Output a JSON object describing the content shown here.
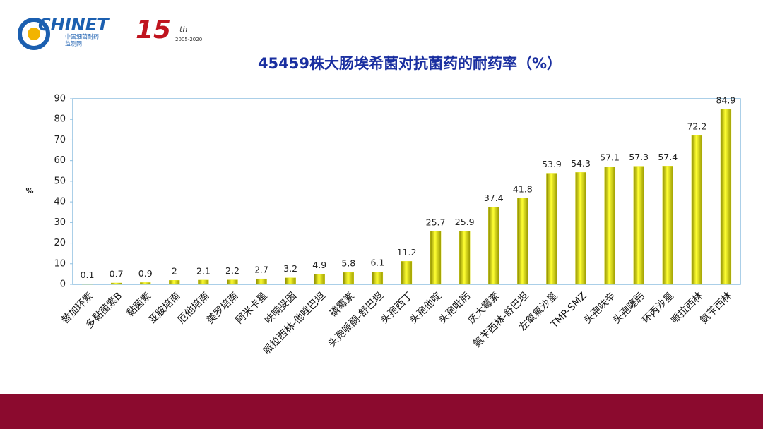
{
  "header": {
    "logo": "CHINET",
    "logo_line1": "中国细菌耐药",
    "logo_line2": "监测网",
    "anniversary": "15",
    "anniversary_suffix": "th",
    "anniversary_years": "2005-2020"
  },
  "chart_data": {
    "type": "bar",
    "title": "45459株大肠埃希菌对抗菌药的耐药率（%）",
    "y_label": "%",
    "categories": [
      "替加环素",
      "多黏菌素B",
      "黏菌素",
      "亚胺培南",
      "厄他培南",
      "美罗培南",
      "阿米卡星",
      "呋喃妥因",
      "哌拉西林-他唑巴坦",
      "磷霉素",
      "头孢哌酮-舒巴坦",
      "头孢西丁",
      "头孢他啶",
      "头孢吡肟",
      "庆大霉素",
      "氨苄西林-舒巴坦",
      "左氧氟沙星",
      "TMP-SMZ",
      "头孢呋辛",
      "头孢噻肟",
      "环丙沙星",
      "哌拉西林",
      "氨苄西林"
    ],
    "values": [
      0.1,
      0.7,
      0.9,
      2,
      2.1,
      2.2,
      2.7,
      3.2,
      4.9,
      5.8,
      6.1,
      11.2,
      25.7,
      25.9,
      37.4,
      41.8,
      53.9,
      54.3,
      57.1,
      57.3,
      57.4,
      72.2,
      84.9
    ],
    "color": "#e6e600",
    "ylim": [
      0,
      90
    ],
    "yticks": [
      0,
      10,
      20,
      30,
      40,
      50,
      60,
      70,
      80,
      90
    ]
  }
}
